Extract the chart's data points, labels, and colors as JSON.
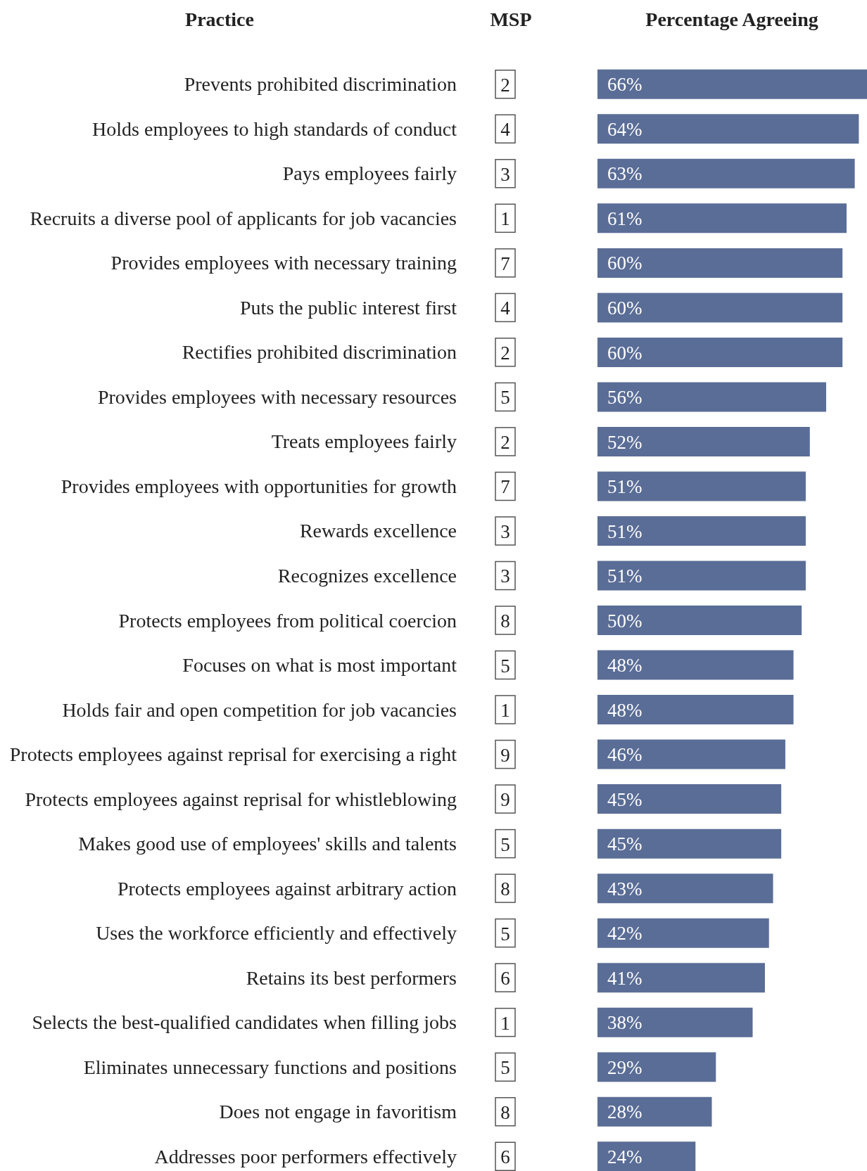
{
  "chart_data": {
    "type": "bar",
    "orientation": "horizontal",
    "xlabel": "Percentage Agreeing",
    "ylabel": "Practice",
    "categories": [
      "Prevents prohibited discrimination",
      "Holds employees to high standards of conduct",
      "Pays employees fairly",
      "Recruits a diverse pool of applicants for job vacancies",
      "Provides employees with necessary training",
      "Puts the public interest first",
      "Rectifies prohibited discrimination",
      "Provides employees with necessary resources",
      "Treats employees fairly",
      "Provides employees with opportunities for growth",
      "Rewards excellence",
      "Recognizes excellence",
      "Protects employees from political coercion",
      "Focuses on what is most important",
      "Holds fair and open competition for job vacancies",
      "Protects employees against reprisal for exercising a right",
      "Protects employees against reprisal for whistleblowing",
      "Makes good use of employees' skills and talents",
      "Protects employees against arbitrary action",
      "Uses the workforce efficiently and effectively",
      "Retains its best performers",
      "Selects the best-qualified candidates when filling jobs",
      "Eliminates unnecessary functions and positions",
      "Does not engage in favoritism",
      "Addresses poor performers effectively"
    ],
    "values": [
      66,
      64,
      63,
      61,
      60,
      60,
      60,
      56,
      52,
      51,
      51,
      51,
      50,
      48,
      48,
      46,
      45,
      45,
      43,
      42,
      41,
      38,
      29,
      28,
      24
    ],
    "value_labels": [
      "66%",
      "64%",
      "63%",
      "61%",
      "60%",
      "60%",
      "60%",
      "56%",
      "52%",
      "51%",
      "51%",
      "51%",
      "50%",
      "48%",
      "48%",
      "46%",
      "45%",
      "45%",
      "43%",
      "42%",
      "41%",
      "38%",
      "29%",
      "28%",
      "24%"
    ],
    "color": "#5a6d96",
    "annotations": [
      "MSP",
      "2",
      "4",
      "3",
      "1",
      "7",
      "4",
      "2",
      "5",
      "2",
      "7",
      "3",
      "3",
      "8",
      "5",
      "1",
      "9",
      "9",
      "5",
      "8",
      "5",
      "6",
      "1",
      "5",
      "8",
      "6"
    ],
    "legend": false,
    "grid": false
  }
}
